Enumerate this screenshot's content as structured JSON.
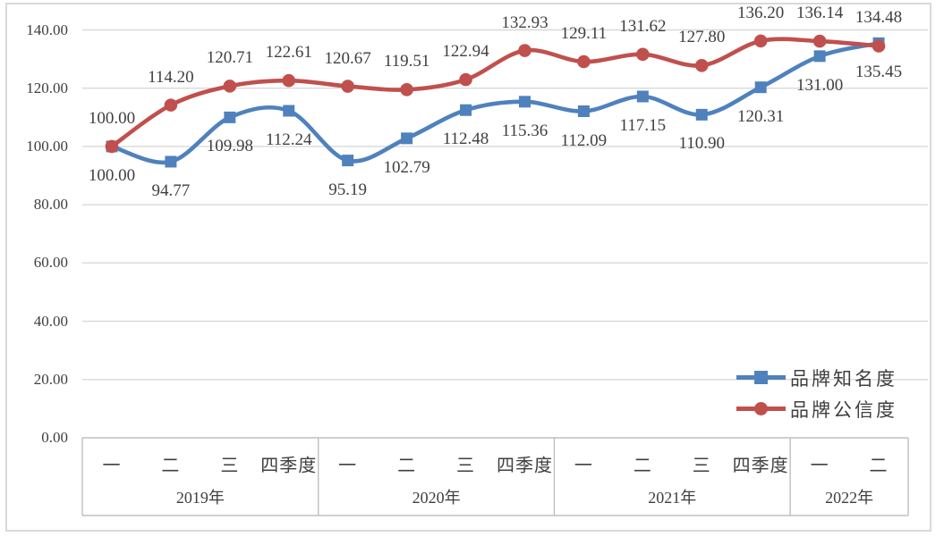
{
  "chart_data": {
    "type": "line",
    "title": "",
    "smooth": true,
    "grid": true,
    "ylim": [
      0,
      140
    ],
    "y_tick_values": [
      140,
      120,
      100,
      80,
      60,
      40,
      20,
      0
    ],
    "y_tick_decimals": 2,
    "data_label_decimals": 2,
    "categories": [
      "一",
      "二",
      "三",
      "四季度",
      "一",
      "二",
      "三",
      "四季度",
      "一",
      "二",
      "三",
      "四季度",
      "一",
      "二"
    ],
    "year_groups": [
      {
        "label": "2019年",
        "count": 4
      },
      {
        "label": "2020年",
        "count": 4
      },
      {
        "label": "2021年",
        "count": 4
      },
      {
        "label": "2022年",
        "count": 2
      }
    ],
    "series": [
      {
        "name": "品牌知名度",
        "id": "brand-awareness",
        "color": "#4F81BD",
        "marker": "square",
        "label_side": "below",
        "values": [
          100.0,
          94.77,
          109.98,
          112.24,
          95.19,
          102.79,
          112.48,
          115.36,
          112.09,
          117.15,
          110.9,
          120.31,
          131.0,
          135.45
        ]
      },
      {
        "name": "品牌公信度",
        "id": "brand-credibility",
        "color": "#C0504D",
        "marker": "circle",
        "label_side": "above",
        "values": [
          100.0,
          114.2,
          120.71,
          122.61,
          120.67,
          119.51,
          122.94,
          132.93,
          129.11,
          131.62,
          127.8,
          136.2,
          136.14,
          134.48
        ]
      }
    ],
    "legend_position": "inside-right",
    "colors": {
      "gridline": "#D9D9D9",
      "axis_line": "#BFBFBF",
      "frame": "#D9D9D9",
      "text": "#3F3F3F",
      "background": "#FFFFFF"
    }
  }
}
